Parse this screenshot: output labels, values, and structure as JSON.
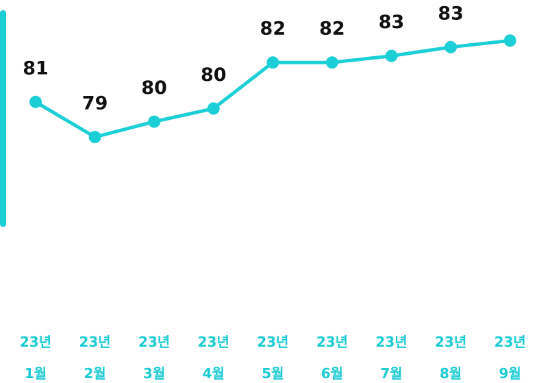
{
  "chart_data": {
    "type": "line",
    "categories": [
      "23년 1월",
      "23년 2월",
      "23년 3월",
      "23년 4월",
      "23년 5월",
      "23년 6월",
      "23년 7월",
      "23년 8월",
      "23년 9월"
    ],
    "values": [
      80.6,
      79.0,
      79.7,
      80.3,
      82.4,
      82.4,
      82.7,
      83.1,
      83.4
    ],
    "value_labels": [
      "81",
      "79",
      "80",
      "80",
      "82",
      "82",
      "83",
      "83",
      null
    ],
    "color": "#1ccfd6",
    "ylim": [
      77,
      85.25
    ]
  }
}
